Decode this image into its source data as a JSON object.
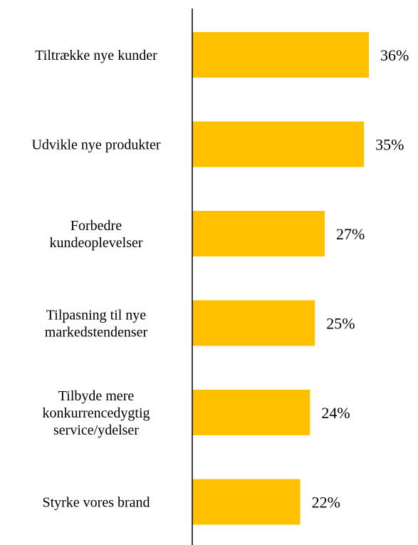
{
  "chart_data": {
    "type": "bar",
    "orientation": "horizontal",
    "categories": [
      [
        "Tiltrække nye kunder"
      ],
      [
        "Udvikle nye produkter"
      ],
      [
        "Forbedre",
        "kundeoplevelser"
      ],
      [
        "Tilpasning til nye",
        "markedstendenser"
      ],
      [
        "Tilbyde mere",
        "konkurrencedygtig",
        "service/ydelser"
      ],
      [
        "Styrke vores brand"
      ]
    ],
    "values": [
      36,
      35,
      27,
      25,
      24,
      22
    ],
    "value_labels": [
      "36%",
      "35%",
      "27%",
      "25%",
      "24%",
      "22%"
    ],
    "bar_color": "#FFC000",
    "axis_color": "#000000",
    "title": "",
    "xlabel": "",
    "ylabel": "",
    "grid": false,
    "legend": "none"
  }
}
